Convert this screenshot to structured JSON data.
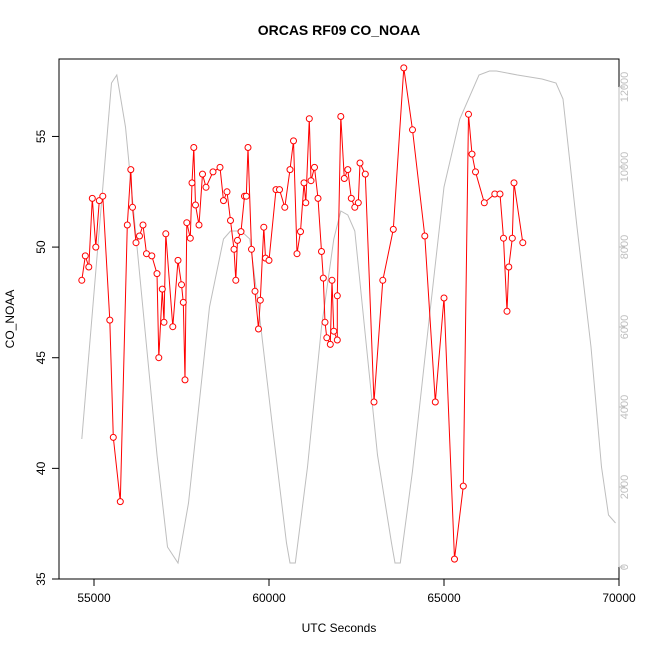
{
  "chart_data": {
    "type": "line",
    "title": "ORCAS RF09 CO_NOAA",
    "xlabel": "UTC Seconds",
    "ylabel": "CO_NOAA",
    "y2label": "",
    "xlim": [
      54000,
      70000
    ],
    "ylim": [
      35,
      58.5
    ],
    "y2lim": [
      -300,
      12700
    ],
    "x_ticks": [
      55000,
      60000,
      65000,
      70000
    ],
    "y_ticks": [
      35,
      40,
      45,
      50,
      55
    ],
    "y2_ticks": [
      0,
      2000,
      4000,
      6000,
      8000,
      10000,
      12000
    ],
    "colors": {
      "co": "#ff0000",
      "altitude": "#bebebe",
      "axis": "#000000",
      "y2axis": "#bebebe"
    },
    "series": [
      {
        "axis": "left",
        "style": "line-with-circles",
        "points": [
          [
            54650,
            48.5
          ],
          [
            54750,
            49.6
          ],
          [
            54850,
            49.1
          ],
          [
            54950,
            52.2
          ],
          [
            55050,
            50.0
          ],
          [
            55150,
            52.1
          ],
          [
            55250,
            52.3
          ],
          [
            55450,
            46.7
          ],
          [
            55550,
            41.4
          ],
          [
            55750,
            38.5
          ],
          [
            55950,
            51.0
          ],
          [
            56050,
            53.5
          ],
          [
            56100,
            51.8
          ],
          [
            56200,
            50.2
          ],
          [
            56300,
            50.5
          ],
          [
            56400,
            51.0
          ],
          [
            56500,
            49.7
          ],
          [
            56650,
            49.6
          ],
          [
            56800,
            48.8
          ],
          [
            56850,
            45.0
          ],
          [
            56950,
            48.1
          ],
          [
            57000,
            46.6
          ],
          [
            57050,
            50.6
          ],
          [
            57250,
            46.4
          ],
          [
            57400,
            49.4
          ],
          [
            57500,
            48.3
          ],
          [
            57550,
            47.5
          ],
          [
            57600,
            44.0
          ],
          [
            57650,
            51.1
          ],
          [
            57750,
            50.4
          ],
          [
            57800,
            52.9
          ],
          [
            57850,
            54.5
          ],
          [
            57900,
            51.9
          ],
          [
            58000,
            51.0
          ],
          [
            58100,
            53.3
          ],
          [
            58200,
            52.7
          ],
          [
            58400,
            53.4
          ],
          [
            58600,
            53.6
          ],
          [
            58700,
            52.1
          ],
          [
            58800,
            52.5
          ],
          [
            58900,
            51.2
          ],
          [
            59000,
            49.9
          ],
          [
            59050,
            48.5
          ],
          [
            59100,
            50.3
          ],
          [
            59200,
            50.7
          ],
          [
            59300,
            52.3
          ],
          [
            59350,
            52.3
          ],
          [
            59400,
            54.5
          ],
          [
            59500,
            49.9
          ],
          [
            59600,
            48.0
          ],
          [
            59700,
            46.3
          ],
          [
            59750,
            47.6
          ],
          [
            59850,
            50.9
          ],
          [
            59900,
            49.5
          ],
          [
            60000,
            49.4
          ],
          [
            60200,
            52.6
          ],
          [
            60300,
            52.6
          ],
          [
            60450,
            51.8
          ],
          [
            60600,
            53.5
          ],
          [
            60700,
            54.8
          ],
          [
            60800,
            49.7
          ],
          [
            60900,
            50.7
          ],
          [
            61000,
            52.9
          ],
          [
            61050,
            52.0
          ],
          [
            61150,
            55.8
          ],
          [
            61200,
            53.0
          ],
          [
            61300,
            53.6
          ],
          [
            61400,
            52.2
          ],
          [
            61500,
            49.8
          ],
          [
            61550,
            48.6
          ],
          [
            61600,
            46.6
          ],
          [
            61650,
            45.9
          ],
          [
            61750,
            45.6
          ],
          [
            61800,
            48.5
          ],
          [
            61850,
            46.2
          ],
          [
            61950,
            45.8
          ],
          [
            61950,
            47.8
          ],
          [
            62050,
            55.9
          ],
          [
            62150,
            53.1
          ],
          [
            62250,
            53.5
          ],
          [
            62350,
            52.2
          ],
          [
            62450,
            51.8
          ],
          [
            62550,
            52.0
          ],
          [
            62600,
            53.8
          ],
          [
            62750,
            53.3
          ],
          [
            63000,
            43.0
          ],
          [
            63250,
            48.5
          ],
          [
            63550,
            50.8
          ],
          [
            63850,
            58.1
          ],
          [
            64100,
            55.3
          ],
          [
            64450,
            50.5
          ],
          [
            64750,
            43.0
          ],
          [
            65000,
            47.7
          ],
          [
            65300,
            35.9
          ],
          [
            65550,
            39.2
          ],
          [
            65700,
            56.0
          ],
          [
            65800,
            54.2
          ],
          [
            65900,
            53.4
          ],
          [
            66150,
            52.0
          ],
          [
            66450,
            52.4
          ],
          [
            66600,
            52.4
          ],
          [
            66700,
            50.4
          ],
          [
            66800,
            47.1
          ],
          [
            66850,
            49.1
          ],
          [
            66950,
            50.4
          ],
          [
            67000,
            52.9
          ],
          [
            67250,
            50.2
          ]
        ]
      },
      {
        "axis": "right",
        "style": "line",
        "points": [
          [
            54650,
            3200
          ],
          [
            55500,
            12100
          ],
          [
            55650,
            12300
          ],
          [
            55900,
            11000
          ],
          [
            56800,
            2800
          ],
          [
            57100,
            500
          ],
          [
            57400,
            100
          ],
          [
            57700,
            1600
          ],
          [
            58300,
            6500
          ],
          [
            58700,
            8200
          ],
          [
            58900,
            8400
          ],
          [
            59200,
            8400
          ],
          [
            59450,
            8200
          ],
          [
            59700,
            6500
          ],
          [
            60100,
            3500
          ],
          [
            60500,
            600
          ],
          [
            60600,
            100
          ],
          [
            60750,
            100
          ],
          [
            61100,
            2500
          ],
          [
            61500,
            6000
          ],
          [
            61850,
            8200
          ],
          [
            62050,
            8900
          ],
          [
            62250,
            8800
          ],
          [
            62450,
            8400
          ],
          [
            62750,
            5800
          ],
          [
            63100,
            2800
          ],
          [
            63500,
            600
          ],
          [
            63600,
            100
          ],
          [
            63750,
            100
          ],
          [
            64100,
            2400
          ],
          [
            64550,
            6000
          ],
          [
            65000,
            9500
          ],
          [
            65450,
            11200
          ],
          [
            66000,
            12300
          ],
          [
            66300,
            12400
          ],
          [
            66500,
            12400
          ],
          [
            67100,
            12300
          ],
          [
            67800,
            12200
          ],
          [
            68200,
            12100
          ],
          [
            68400,
            11700
          ],
          [
            68800,
            8500
          ],
          [
            69200,
            5500
          ],
          [
            69500,
            2500
          ],
          [
            69700,
            1300
          ],
          [
            69900,
            1100
          ]
        ]
      }
    ]
  }
}
